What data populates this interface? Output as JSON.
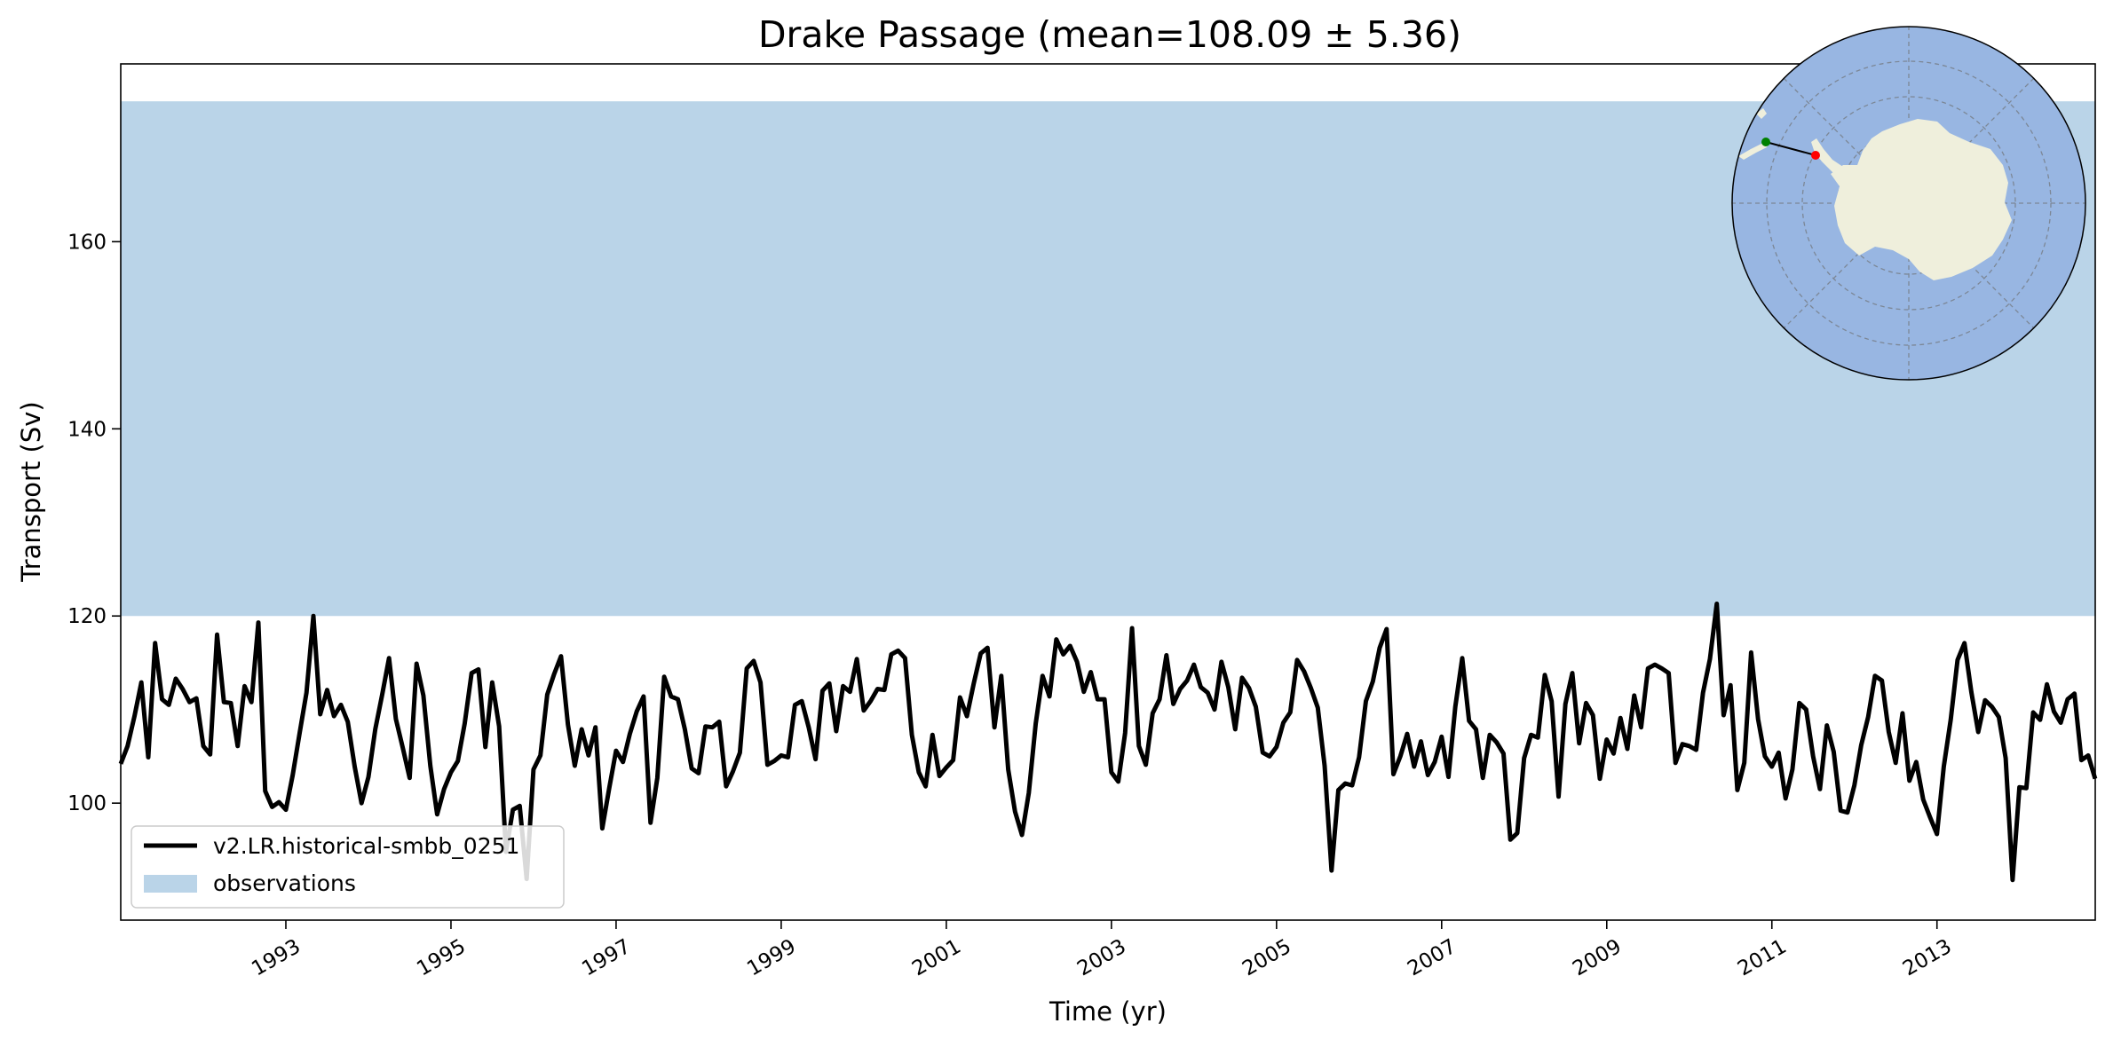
{
  "chart_data": {
    "type": "line",
    "title": "Drake Passage (mean=108.09 ± 5.36)",
    "xlabel": "Time (yr)",
    "ylabel": "Transport (Sv)",
    "xlim": [
      1991.0,
      2014.917
    ],
    "ylim": [
      87.5,
      179
    ],
    "x_ticks": [
      1993,
      1995,
      1997,
      1999,
      2001,
      2003,
      2005,
      2007,
      2009,
      2011,
      2013
    ],
    "x_tick_labels": [
      "1993",
      "1995",
      "1997",
      "1999",
      "2001",
      "2003",
      "2005",
      "2007",
      "2009",
      "2011",
      "2013"
    ],
    "y_ticks": [
      100,
      120,
      140,
      160
    ],
    "y_tick_labels": [
      "100",
      "120",
      "140",
      "160"
    ],
    "observation_band": {
      "name": "observations",
      "y_min": 120,
      "y_max": 175,
      "color": "#bad4e8"
    },
    "legend_position": "lower-left",
    "series": [
      {
        "name": "v2.LR.historical-smbb_0251",
        "color": "#000000",
        "x_start": 1991.0,
        "x_step": 0.08333,
        "values": [
          104.2,
          106.1,
          109.3,
          112.9,
          104.9,
          117.1,
          111.1,
          110.5,
          113.3,
          112.2,
          110.8,
          111.2,
          106.1,
          105.2,
          118.0,
          110.8,
          110.7,
          106.1,
          112.5,
          110.8,
          119.3,
          101.3,
          99.6,
          100.1,
          99.3,
          103.0,
          107.5,
          111.8,
          120.0,
          109.5,
          112.1,
          109.3,
          110.5,
          108.7,
          103.9,
          100.0,
          102.8,
          107.9,
          111.6,
          115.5,
          109.0,
          105.9,
          102.7,
          114.9,
          111.5,
          104.0,
          98.8,
          101.5,
          103.3,
          104.5,
          108.5,
          113.9,
          114.3,
          106.0,
          112.9,
          108.2,
          94.8,
          99.3,
          99.7,
          91.9,
          103.6,
          105.1,
          111.6,
          113.8,
          115.7,
          108.4,
          104.0,
          107.9,
          105.1,
          108.1,
          97.3,
          101.6,
          105.6,
          104.4,
          107.4,
          109.8,
          111.4,
          97.9,
          102.7,
          113.5,
          111.4,
          111.1,
          107.9,
          103.7,
          103.2,
          108.2,
          108.1,
          108.7,
          101.8,
          103.4,
          105.4,
          114.4,
          115.2,
          112.9,
          104.1,
          104.5,
          105.1,
          104.9,
          110.5,
          110.9,
          108.1,
          104.7,
          112.0,
          112.8,
          107.7,
          112.5,
          111.9,
          115.4,
          109.9,
          110.9,
          112.2,
          112.1,
          115.9,
          116.3,
          115.5,
          107.3,
          103.3,
          101.8,
          107.3,
          102.9,
          103.8,
          104.6,
          111.3,
          109.3,
          112.8,
          116.0,
          116.6,
          108.1,
          113.6,
          103.6,
          99.1,
          96.6,
          101.1,
          108.5,
          113.6,
          111.4,
          117.5,
          115.9,
          116.8,
          115.1,
          111.9,
          114.0,
          111.1,
          111.1,
          103.3,
          102.3,
          107.5,
          118.7,
          106.1,
          104.1,
          109.6,
          111.1,
          115.8,
          110.6,
          112.2,
          113.1,
          114.8,
          112.4,
          111.8,
          110.0,
          115.1,
          112.4,
          107.9,
          113.4,
          112.3,
          110.3,
          105.4,
          105.0,
          106.0,
          108.6,
          109.7,
          115.3,
          114.1,
          112.3,
          110.2,
          104.0,
          92.8,
          101.4,
          102.1,
          101.9,
          104.9,
          110.9,
          113.0,
          116.6,
          118.6,
          103.1,
          105.0,
          107.4,
          103.9,
          106.6,
          103.0,
          104.4,
          107.1,
          102.8,
          110.3,
          115.5,
          108.8,
          107.9,
          102.7,
          107.3,
          106.5,
          105.3,
          96.1,
          96.8,
          104.8,
          107.3,
          107.0,
          113.7,
          110.9,
          100.7,
          110.6,
          113.9,
          106.4,
          110.7,
          109.4,
          102.6,
          106.8,
          105.3,
          109.1,
          105.8,
          111.5,
          108.1,
          114.4,
          114.8,
          114.4,
          113.9,
          104.3,
          106.3,
          106.1,
          105.7,
          111.8,
          115.4,
          121.3,
          109.4,
          112.6,
          101.4,
          104.3,
          116.1,
          109.0,
          105.0,
          103.9,
          105.4,
          100.5,
          103.6,
          110.7,
          110.0,
          105.0,
          101.5,
          108.3,
          105.5,
          99.2,
          99.0,
          101.9,
          106.2,
          109.2,
          113.6,
          113.1,
          107.6,
          104.3,
          109.6,
          102.4,
          104.4,
          100.4,
          98.5,
          96.7,
          103.9,
          108.9,
          115.3,
          117.1,
          111.9,
          107.6,
          111.0,
          110.3,
          109.2,
          104.8,
          91.8,
          101.7,
          101.6,
          109.7,
          108.9,
          112.7,
          109.8,
          108.6,
          111.1,
          111.7,
          104.6,
          105.1,
          102.6
        ]
      }
    ]
  },
  "inset_map": {
    "description": "South polar stereographic map",
    "land_color": "#efefdc",
    "ocean_color": "#98b6e2",
    "start_point_color": "#008000",
    "end_point_color": "#ff0000"
  }
}
